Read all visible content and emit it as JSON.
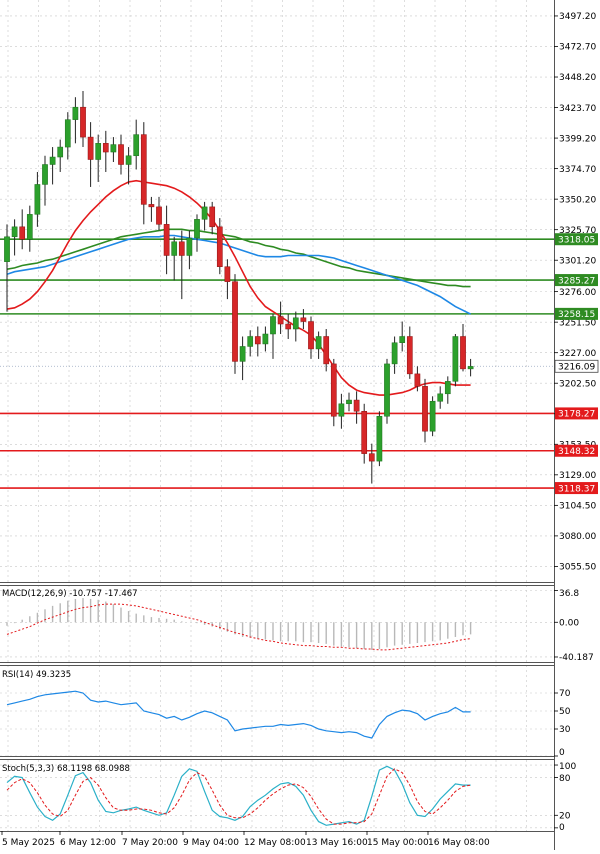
{
  "colors": {
    "bull": "#2ca02c",
    "bear": "#d62728",
    "ma_fast": "#e31a1c",
    "ma_mid": "#1e88e5",
    "ma_slow": "#2e8b22",
    "support": "#e31a1c",
    "resistance": "#2e8b22",
    "macd_line": "#e31a1c",
    "macd_hist": "#b8b8b8",
    "rsi": "#1e88e5",
    "stoch_k": "#2ab0c8",
    "stoch_d": "#e31a1c",
    "grid": "#c8c8c8"
  },
  "chart_data": [
    {
      "type": "candlestick",
      "panel": "price",
      "ylim": [
        3043.0,
        3510.0
      ],
      "grid": true,
      "y_ticks": [
        "3497.20",
        "3472.70",
        "3448.20",
        "3423.70",
        "3399.20",
        "3374.70",
        "3350.20",
        "3325.70",
        "3301.20",
        "3276.00",
        "3251.50",
        "3227.00",
        "3202.50",
        "3178.00",
        "3153.50",
        "3129.00",
        "3104.50",
        "3080.00",
        "3055.50"
      ],
      "x_labels": [
        "5 May 2025",
        "6 May 12:00",
        "7 May 20:00",
        "9 May 04:00",
        "12 May 08:00",
        "13 May 16:00",
        "15 May 00:00",
        "16 May 08:00"
      ],
      "current_price": {
        "label": "3216.09",
        "value": 3216.09
      },
      "levels": [
        {
          "label": "3318.05",
          "value": 3318.05,
          "kind": "resistance"
        },
        {
          "label": "3285.27",
          "value": 3285.27,
          "kind": "resistance"
        },
        {
          "label": "3258.15",
          "value": 3258.15,
          "kind": "resistance"
        },
        {
          "label": "3178.27",
          "value": 3178.27,
          "kind": "support"
        },
        {
          "label": "3148.32",
          "value": 3148.32,
          "kind": "support"
        },
        {
          "label": "3118.37",
          "value": 3118.37,
          "kind": "support"
        }
      ],
      "candles": [
        [
          3300,
          3330,
          3260,
          3320
        ],
        [
          3320,
          3334,
          3305,
          3328
        ],
        [
          3328,
          3342,
          3310,
          3318
        ],
        [
          3318,
          3345,
          3308,
          3338
        ],
        [
          3338,
          3372,
          3328,
          3362
        ],
        [
          3362,
          3385,
          3345,
          3378
        ],
        [
          3378,
          3392,
          3362,
          3384
        ],
        [
          3384,
          3398,
          3372,
          3392
        ],
        [
          3392,
          3420,
          3382,
          3414
        ],
        [
          3414,
          3432,
          3395,
          3424
        ],
        [
          3424,
          3437,
          3392,
          3400
        ],
        [
          3400,
          3412,
          3360,
          3382
        ],
        [
          3382,
          3402,
          3364,
          3395
        ],
        [
          3395,
          3405,
          3372,
          3388
        ],
        [
          3388,
          3400,
          3380,
          3394
        ],
        [
          3394,
          3402,
          3370,
          3378
        ],
        [
          3378,
          3392,
          3362,
          3385
        ],
        [
          3385,
          3414,
          3374,
          3402
        ],
        [
          3402,
          3412,
          3330,
          3346
        ],
        [
          3346,
          3352,
          3332,
          3344
        ],
        [
          3344,
          3352,
          3325,
          3330
        ],
        [
          3330,
          3345,
          3290,
          3305
        ],
        [
          3305,
          3320,
          3285,
          3316
        ],
        [
          3316,
          3325,
          3270,
          3305
        ],
        [
          3305,
          3325,
          3294,
          3319
        ],
        [
          3319,
          3338,
          3308,
          3334
        ],
        [
          3334,
          3348,
          3325,
          3344
        ],
        [
          3344,
          3348,
          3322,
          3328
        ],
        [
          3328,
          3335,
          3290,
          3296
        ],
        [
          3296,
          3302,
          3270,
          3284
        ],
        [
          3284,
          3290,
          3210,
          3220
        ],
        [
          3220,
          3240,
          3205,
          3232
        ],
        [
          3232,
          3245,
          3224,
          3240
        ],
        [
          3240,
          3248,
          3224,
          3234
        ],
        [
          3234,
          3248,
          3228,
          3242
        ],
        [
          3242,
          3258,
          3222,
          3256
        ],
        [
          3256,
          3268,
          3242,
          3250
        ],
        [
          3250,
          3258,
          3238,
          3246
        ],
        [
          3246,
          3260,
          3236,
          3255
        ],
        [
          3255,
          3262,
          3246,
          3252
        ],
        [
          3252,
          3256,
          3222,
          3230
        ],
        [
          3230,
          3244,
          3222,
          3240
        ],
        [
          3240,
          3246,
          3212,
          3218
        ],
        [
          3218,
          3222,
          3168,
          3176
        ],
        [
          3176,
          3194,
          3166,
          3186
        ],
        [
          3186,
          3195,
          3180,
          3189
        ],
        [
          3189,
          3196,
          3170,
          3180
        ],
        [
          3180,
          3186,
          3138,
          3146
        ],
        [
          3146,
          3154,
          3122,
          3140
        ],
        [
          3140,
          3180,
          3136,
          3176
        ],
        [
          3176,
          3222,
          3170,
          3218
        ],
        [
          3218,
          3240,
          3210,
          3235
        ],
        [
          3235,
          3252,
          3228,
          3240
        ],
        [
          3240,
          3248,
          3206,
          3210
        ],
        [
          3210,
          3216,
          3196,
          3200
        ],
        [
          3200,
          3206,
          3155,
          3164
        ],
        [
          3164,
          3192,
          3160,
          3188
        ],
        [
          3188,
          3200,
          3182,
          3194
        ],
        [
          3194,
          3208,
          3186,
          3204
        ],
        [
          3204,
          3242,
          3200,
          3240
        ],
        [
          3240,
          3250,
          3212,
          3214
        ],
        [
          3214,
          3222,
          3208,
          3216
        ]
      ],
      "ma_fast": [
        3262,
        3263,
        3266,
        3270,
        3276,
        3284,
        3293,
        3304,
        3315,
        3325,
        3333,
        3340,
        3346,
        3352,
        3357,
        3361,
        3364,
        3365,
        3364,
        3363,
        3362,
        3361,
        3359,
        3356,
        3352,
        3347,
        3341,
        3334,
        3325,
        3315,
        3304,
        3292,
        3280,
        3271,
        3264,
        3260,
        3256,
        3252,
        3248,
        3245,
        3241,
        3234,
        3225,
        3216,
        3207,
        3201,
        3197,
        3195,
        3194,
        3193,
        3193,
        3194,
        3195,
        3197,
        3200,
        3202,
        3203,
        3203,
        3202,
        3201,
        3201,
        3201
      ],
      "ma_mid": [
        3290,
        3292,
        3293,
        3294,
        3295,
        3296,
        3298,
        3300,
        3302,
        3304,
        3306,
        3308,
        3310,
        3312,
        3314,
        3316,
        3318,
        3319,
        3320,
        3320,
        3320,
        3321,
        3321,
        3320,
        3319,
        3318,
        3317,
        3316,
        3315,
        3313,
        3311,
        3309,
        3307,
        3305,
        3304,
        3304,
        3304,
        3305,
        3305,
        3305,
        3305,
        3305,
        3304,
        3303,
        3301,
        3299,
        3297,
        3295,
        3293,
        3291,
        3289,
        3287,
        3285,
        3283,
        3281,
        3278,
        3275,
        3272,
        3268,
        3264,
        3261,
        3258
      ],
      "ma_slow": [
        3294,
        3295,
        3297,
        3298,
        3299,
        3301,
        3302,
        3304,
        3306,
        3308,
        3310,
        3312,
        3314,
        3316,
        3318,
        3320,
        3321,
        3322,
        3323,
        3324,
        3325,
        3326,
        3326,
        3326,
        3325,
        3325,
        3324,
        3323,
        3322,
        3321,
        3320,
        3318,
        3316,
        3315,
        3313,
        3312,
        3310,
        3309,
        3307,
        3306,
        3304,
        3302,
        3300,
        3298,
        3296,
        3295,
        3293,
        3292,
        3291,
        3290,
        3289,
        3288,
        3287,
        3286,
        3285,
        3284,
        3283,
        3282,
        3281,
        3281,
        3280,
        3280
      ]
    },
    {
      "type": "bar+line",
      "panel": "macd",
      "title": "MACD(12,26,9) -10.757 -17.467",
      "ylim": [
        -46,
        42
      ],
      "y_ticks": [
        "36.8",
        "0.00",
        "-40.187"
      ],
      "grid": true,
      "histogram": [
        -4,
        -1,
        3,
        7,
        11,
        15,
        19,
        22,
        25,
        27,
        28,
        27,
        26,
        24,
        21,
        17,
        13,
        10,
        8,
        6,
        5,
        4,
        3,
        1,
        0,
        -1,
        -3,
        -5,
        -8,
        -11,
        -14,
        -17,
        -18,
        -19,
        -20,
        -21,
        -22,
        -22,
        -22,
        -23,
        -23,
        -24,
        -25,
        -27,
        -28,
        -29,
        -30,
        -31,
        -32,
        -31,
        -29,
        -27,
        -26,
        -25,
        -24,
        -23,
        -22,
        -21,
        -19,
        -17,
        -15,
        -14
      ],
      "signal": [
        -14,
        -11,
        -8,
        -5,
        -1,
        3,
        6,
        9,
        12,
        15,
        17,
        18,
        20,
        21,
        21,
        21,
        20,
        19,
        17,
        15,
        13,
        11,
        9,
        7,
        5,
        3,
        0,
        -3,
        -6,
        -9,
        -12,
        -14,
        -17,
        -19,
        -21,
        -22,
        -24,
        -25,
        -26,
        -27,
        -27,
        -28,
        -28,
        -29,
        -29,
        -30,
        -30,
        -31,
        -31,
        -32,
        -32,
        -31,
        -30,
        -29,
        -28,
        -27,
        -26,
        -25,
        -24,
        -22,
        -20,
        -19
      ]
    },
    {
      "type": "line",
      "panel": "rsi",
      "title": "RSI(14) 49.3235",
      "ylim": [
        0,
        100
      ],
      "y_ticks": [
        "70",
        "50",
        "30",
        "0"
      ],
      "grid": true,
      "rsi": [
        57,
        59,
        61,
        63,
        66,
        68,
        69,
        70,
        71,
        72,
        70,
        62,
        60,
        61,
        59,
        57,
        58,
        59,
        50,
        48,
        46,
        42,
        44,
        40,
        43,
        47,
        50,
        48,
        44,
        40,
        28,
        30,
        31,
        32,
        33,
        33,
        35,
        34,
        35,
        36,
        34,
        30,
        28,
        27,
        26,
        27,
        26,
        22,
        20,
        35,
        44,
        48,
        51,
        50,
        47,
        40,
        44,
        47,
        49,
        54,
        49,
        49
      ]
    },
    {
      "type": "line",
      "panel": "stoch",
      "title": "Stoch(5,3,3) 68.1198 68.0988",
      "ylim": [
        -5,
        108
      ],
      "y_ticks": [
        "100",
        "80",
        "20",
        "0"
      ],
      "grid": true,
      "k": [
        72,
        82,
        80,
        56,
        33,
        18,
        12,
        22,
        52,
        83,
        88,
        72,
        44,
        26,
        24,
        28,
        30,
        33,
        28,
        24,
        20,
        24,
        52,
        82,
        94,
        90,
        58,
        28,
        18,
        16,
        12,
        18,
        34,
        44,
        52,
        62,
        70,
        72,
        66,
        52,
        28,
        10,
        4,
        6,
        8,
        10,
        6,
        12,
        50,
        92,
        98,
        92,
        70,
        40,
        20,
        18,
        30,
        46,
        58,
        70,
        68,
        68
      ],
      "d": [
        60,
        72,
        78,
        72,
        56,
        36,
        22,
        18,
        28,
        52,
        74,
        80,
        68,
        48,
        32,
        28,
        28,
        30,
        30,
        28,
        24,
        22,
        32,
        52,
        76,
        88,
        82,
        60,
        36,
        20,
        16,
        16,
        22,
        32,
        44,
        54,
        62,
        68,
        70,
        64,
        50,
        30,
        14,
        6,
        6,
        8,
        8,
        10,
        22,
        52,
        82,
        94,
        88,
        68,
        42,
        26,
        22,
        32,
        44,
        58,
        66,
        68
      ]
    }
  ]
}
